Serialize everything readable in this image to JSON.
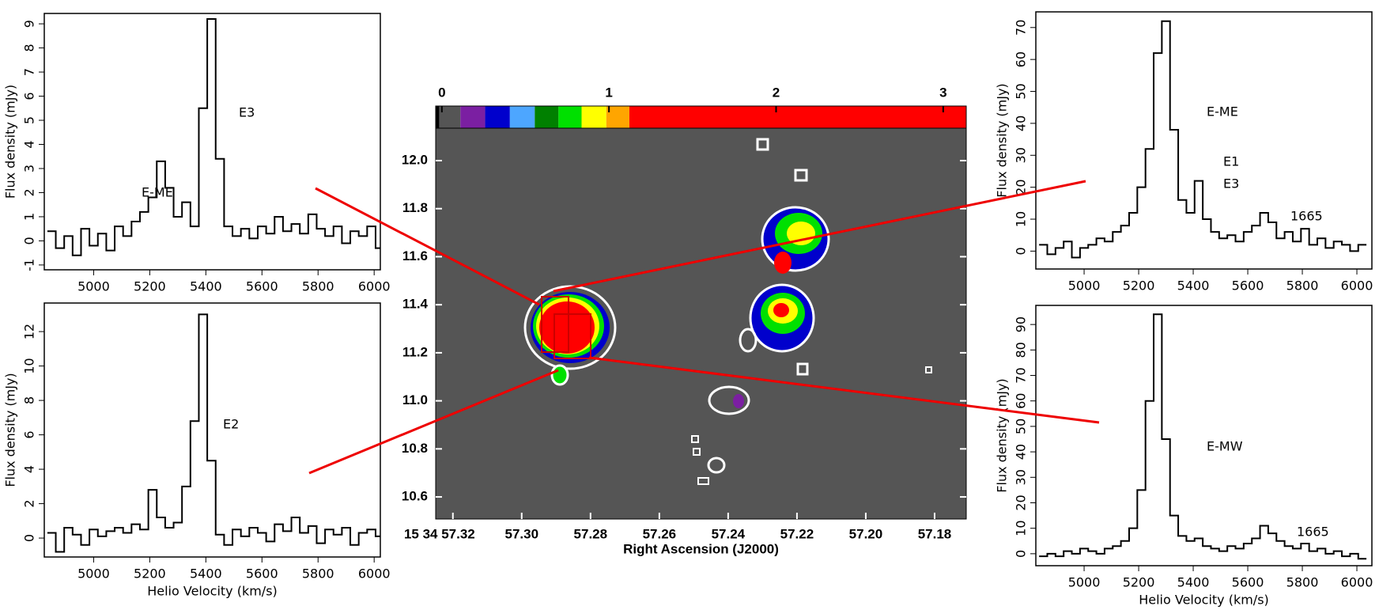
{
  "chart_data": [
    {
      "type": "step",
      "ylabel": "Flux density (mJy)",
      "x": [
        4850,
        4880,
        4910,
        4940,
        4970,
        5000,
        5030,
        5060,
        5090,
        5120,
        5150,
        5180,
        5210,
        5240,
        5270,
        5300,
        5330,
        5360,
        5390,
        5420,
        5450,
        5480,
        5510,
        5540,
        5570,
        5600,
        5630,
        5660,
        5690,
        5720,
        5750,
        5780,
        5810,
        5840,
        5870,
        5900,
        5930,
        5960,
        5990,
        6020
      ],
      "values": [
        0.4,
        -0.3,
        0.2,
        -0.6,
        0.5,
        -0.2,
        0.3,
        -0.4,
        0.6,
        0.2,
        0.8,
        1.2,
        1.8,
        3.3,
        2.2,
        1.0,
        1.6,
        0.6,
        5.5,
        9.2,
        3.4,
        0.6,
        0.2,
        0.5,
        0.1,
        0.6,
        0.3,
        1.0,
        0.4,
        0.7,
        0.3,
        1.1,
        0.5,
        0.2,
        0.6,
        -0.1,
        0.4,
        0.2,
        0.6,
        -0.3
      ],
      "xlim": [
        4824,
        6022
      ],
      "xticks": [
        5000,
        5200,
        5400,
        5600,
        5800,
        6000
      ],
      "ylim": [
        -1.2,
        9.43
      ],
      "yticks": [
        -1,
        0,
        1,
        2,
        3,
        4,
        5,
        6,
        7,
        8,
        9
      ],
      "color": "#000000",
      "annotations": [
        "E-ME",
        "E3"
      ]
    },
    {
      "type": "step",
      "ylabel": "Flux density (mJy)",
      "xlabel": "Helio Velocity (km/s)",
      "x": [
        4850,
        4880,
        4910,
        4940,
        4970,
        5000,
        5030,
        5060,
        5090,
        5120,
        5150,
        5180,
        5210,
        5240,
        5270,
        5300,
        5330,
        5360,
        5390,
        5420,
        5450,
        5480,
        5510,
        5540,
        5570,
        5600,
        5630,
        5660,
        5690,
        5720,
        5750,
        5780,
        5810,
        5840,
        5870,
        5900,
        5930,
        5960,
        5990,
        6020
      ],
      "values": [
        0.3,
        -0.8,
        0.6,
        0.2,
        -0.4,
        0.5,
        0.1,
        0.4,
        0.6,
        0.3,
        0.8,
        0.5,
        2.8,
        1.2,
        0.6,
        0.9,
        3.0,
        6.8,
        13.0,
        4.5,
        0.2,
        -0.4,
        0.5,
        0.1,
        0.6,
        0.3,
        -0.2,
        0.8,
        0.4,
        1.2,
        0.3,
        0.7,
        -0.3,
        0.5,
        0.2,
        0.6,
        -0.4,
        0.3,
        0.5,
        0.1
      ],
      "xlim": [
        4824,
        6022
      ],
      "xticks": [
        5000,
        5200,
        5400,
        5600,
        5800,
        6000
      ],
      "ylim": [
        -1.1,
        13.66
      ],
      "yticks": [
        0,
        2,
        4,
        6,
        8,
        10,
        12
      ],
      "color": "#000000",
      "annotations": [
        "E2"
      ]
    },
    {
      "type": "step",
      "ylabel": "Flux density (mJy)",
      "x": [
        4850,
        4880,
        4910,
        4940,
        4970,
        5000,
        5030,
        5060,
        5090,
        5120,
        5150,
        5180,
        5210,
        5240,
        5270,
        5300,
        5330,
        5360,
        5390,
        5420,
        5450,
        5480,
        5510,
        5540,
        5570,
        5600,
        5630,
        5660,
        5690,
        5720,
        5750,
        5780,
        5810,
        5840,
        5870,
        5900,
        5930,
        5960,
        5990,
        6020
      ],
      "values": [
        2,
        -1,
        1,
        3,
        -2,
        1,
        2,
        4,
        3,
        6,
        8,
        12,
        20,
        32,
        62,
        72,
        38,
        16,
        12,
        22,
        10,
        6,
        4,
        5,
        3,
        6,
        8,
        12,
        9,
        4,
        6,
        3,
        7,
        2,
        4,
        1,
        3,
        2,
        0,
        2
      ],
      "xlim": [
        4823,
        6055
      ],
      "xticks": [
        5000,
        5200,
        5400,
        5600,
        5800,
        6000
      ],
      "ylim": [
        -5.6,
        74.9
      ],
      "yticks": [
        0,
        10,
        20,
        30,
        40,
        50,
        60,
        70
      ],
      "color": "#000000",
      "annotations": [
        "E-ME",
        "E1",
        "E3",
        "1665"
      ]
    },
    {
      "type": "step",
      "ylabel": "Flux density (mJy)",
      "xlabel": "Helio Velocity (km/s)",
      "x": [
        4850,
        4880,
        4910,
        4940,
        4970,
        5000,
        5030,
        5060,
        5090,
        5120,
        5150,
        5180,
        5210,
        5240,
        5270,
        5300,
        5330,
        5360,
        5390,
        5420,
        5450,
        5480,
        5510,
        5540,
        5570,
        5600,
        5630,
        5660,
        5690,
        5720,
        5750,
        5780,
        5810,
        5840,
        5870,
        5900,
        5930,
        5960,
        5990,
        6020
      ],
      "values": [
        -1,
        0,
        -1,
        1,
        0,
        2,
        1,
        0,
        2,
        3,
        5,
        10,
        25,
        60,
        94,
        45,
        15,
        7,
        5,
        6,
        3,
        2,
        1,
        3,
        2,
        4,
        6,
        11,
        8,
        5,
        3,
        2,
        4,
        1,
        2,
        0,
        1,
        -1,
        0,
        -2
      ],
      "xlim": [
        4823,
        6055
      ],
      "xticks": [
        5000,
        5200,
        5400,
        5600,
        5800,
        6000
      ],
      "ylim": [
        -4.7,
        97.5
      ],
      "yticks": [
        0,
        10,
        20,
        30,
        40,
        50,
        60,
        70,
        80,
        90
      ],
      "color": "#000000",
      "annotations": [
        "E-MW",
        "1665"
      ]
    },
    {
      "type": "map",
      "xlabel": "Right Ascension (J2000)",
      "xlim": [
        57.325,
        57.1708
      ],
      "xticks": [
        {
          "value": 57.32,
          "label": "15 34 57.32"
        },
        {
          "value": 57.3,
          "label": "57.30"
        },
        {
          "value": 57.28,
          "label": "57.28"
        },
        {
          "value": 57.26,
          "label": "57.26"
        },
        {
          "value": 57.24,
          "label": "57.24"
        },
        {
          "value": 57.22,
          "label": "57.22"
        },
        {
          "value": 57.2,
          "label": "57.20"
        },
        {
          "value": 57.18,
          "label": "57.18"
        }
      ],
      "ylim": [
        10.508,
        12.135
      ],
      "yticks": [
        10.6,
        10.8,
        {
          "value": 11.0,
          "label": "11.0"
        },
        11.2,
        11.4,
        11.6,
        11.8,
        {
          "value": 12.0,
          "label": "12.0"
        }
      ],
      "background": "#555555",
      "colorbar": {
        "lim": [
          -0.037,
          3.138
        ],
        "ticks": [
          0,
          1,
          2,
          3
        ],
        "levels": [
          -0.037,
          -0.016,
          0.111,
          0.259,
          0.407,
          0.556,
          0.698,
          0.836,
          0.984,
          1.122,
          3.138
        ],
        "colors": [
          "#000000",
          "#555555",
          "#7b1fa2",
          "#0000cc",
          "#4da6ff",
          "#008000",
          "#00e000",
          "#ffff00",
          "#ffa500",
          "#ff0000"
        ]
      }
    }
  ]
}
